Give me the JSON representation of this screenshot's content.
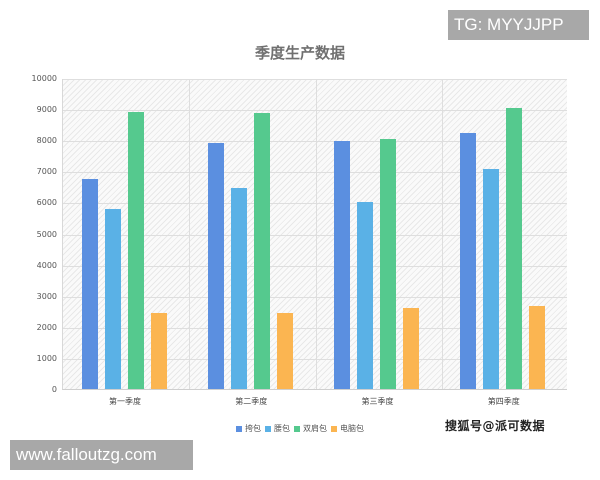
{
  "watermarks": {
    "top_right": "TG: MYYJJPP",
    "bottom_left": "www.falloutzg.com",
    "source": "搜狐号@派可数据"
  },
  "colors": {
    "挎包": "#5b8fe0",
    "腰包": "#5ab1e6",
    "双肩包": "#55c98e",
    "电脑包": "#fbb551"
  },
  "chart_data": {
    "type": "bar",
    "title": "季度生产数据",
    "xlabel": "",
    "ylabel": "",
    "ylim": [
      0,
      10000
    ],
    "yticks": [
      0,
      1000,
      2000,
      3000,
      4000,
      5000,
      6000,
      7000,
      8000,
      9000,
      10000
    ],
    "grid": true,
    "legend_position": "bottom",
    "categories": [
      "第一季度",
      "第二季度",
      "第三季度",
      "第四季度"
    ],
    "series": [
      {
        "name": "挎包",
        "color": "#5b8fe0",
        "values": [
          6750,
          7900,
          7980,
          8230
        ]
      },
      {
        "name": "腰包",
        "color": "#5ab1e6",
        "values": [
          5800,
          6450,
          6000,
          7080
        ]
      },
      {
        "name": "双肩包",
        "color": "#55c98e",
        "values": [
          8920,
          8880,
          8050,
          9040
        ]
      },
      {
        "name": "电脑包",
        "color": "#fbb551",
        "values": [
          2450,
          2450,
          2600,
          2680
        ]
      }
    ]
  }
}
